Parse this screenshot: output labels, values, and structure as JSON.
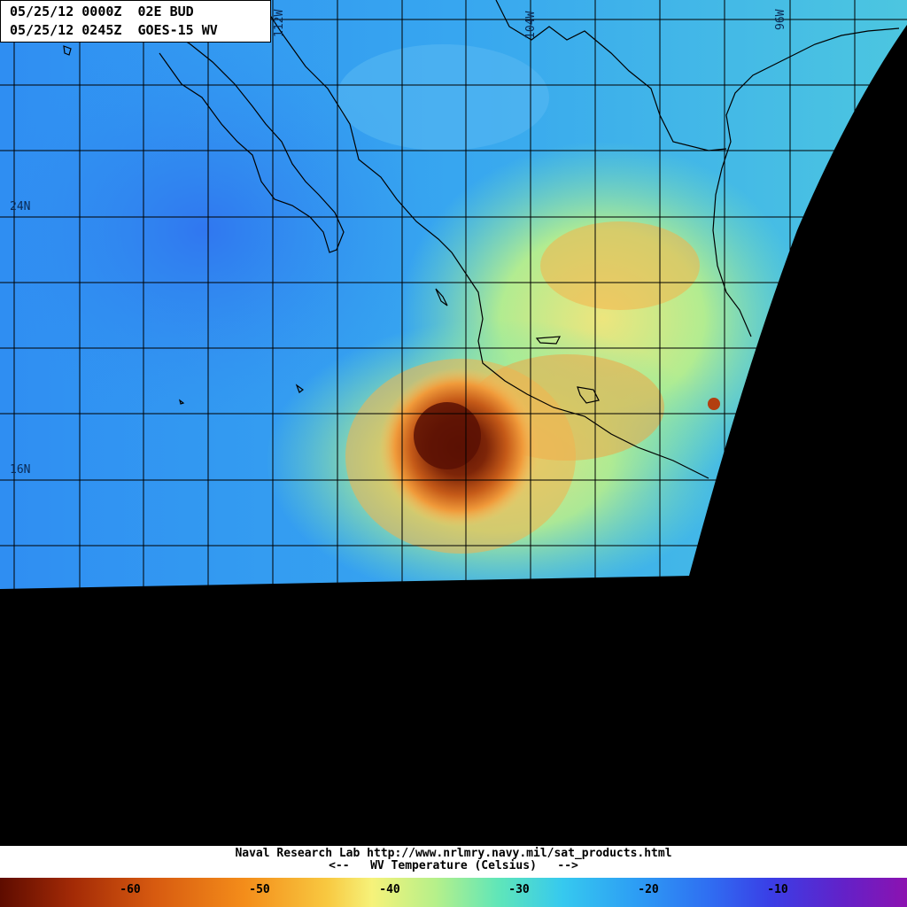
{
  "header": {
    "line1": "05/25/12 0000Z  02E BUD",
    "line2": "05/25/12 0245Z  GOES-15 WV"
  },
  "grid_labels": {
    "lat": [
      "24N",
      "16N"
    ],
    "lon": [
      "112W",
      "104W",
      "96W"
    ]
  },
  "footer": {
    "credit": "Naval Research Lab http://www.nrlmry.navy.mil/sat_products.html",
    "scale_title": "<--   WV Temperature (Celsius)   -->",
    "ticks": [
      "-60",
      "-50",
      "-40",
      "-30",
      "-20",
      "-10"
    ]
  },
  "colors": {
    "storm_core": "#6b1a05",
    "moist": "#f08a2a",
    "mid": "#9be88e",
    "dry": "#2d8ef0",
    "grid": "#000000",
    "no_data": "#000000"
  }
}
